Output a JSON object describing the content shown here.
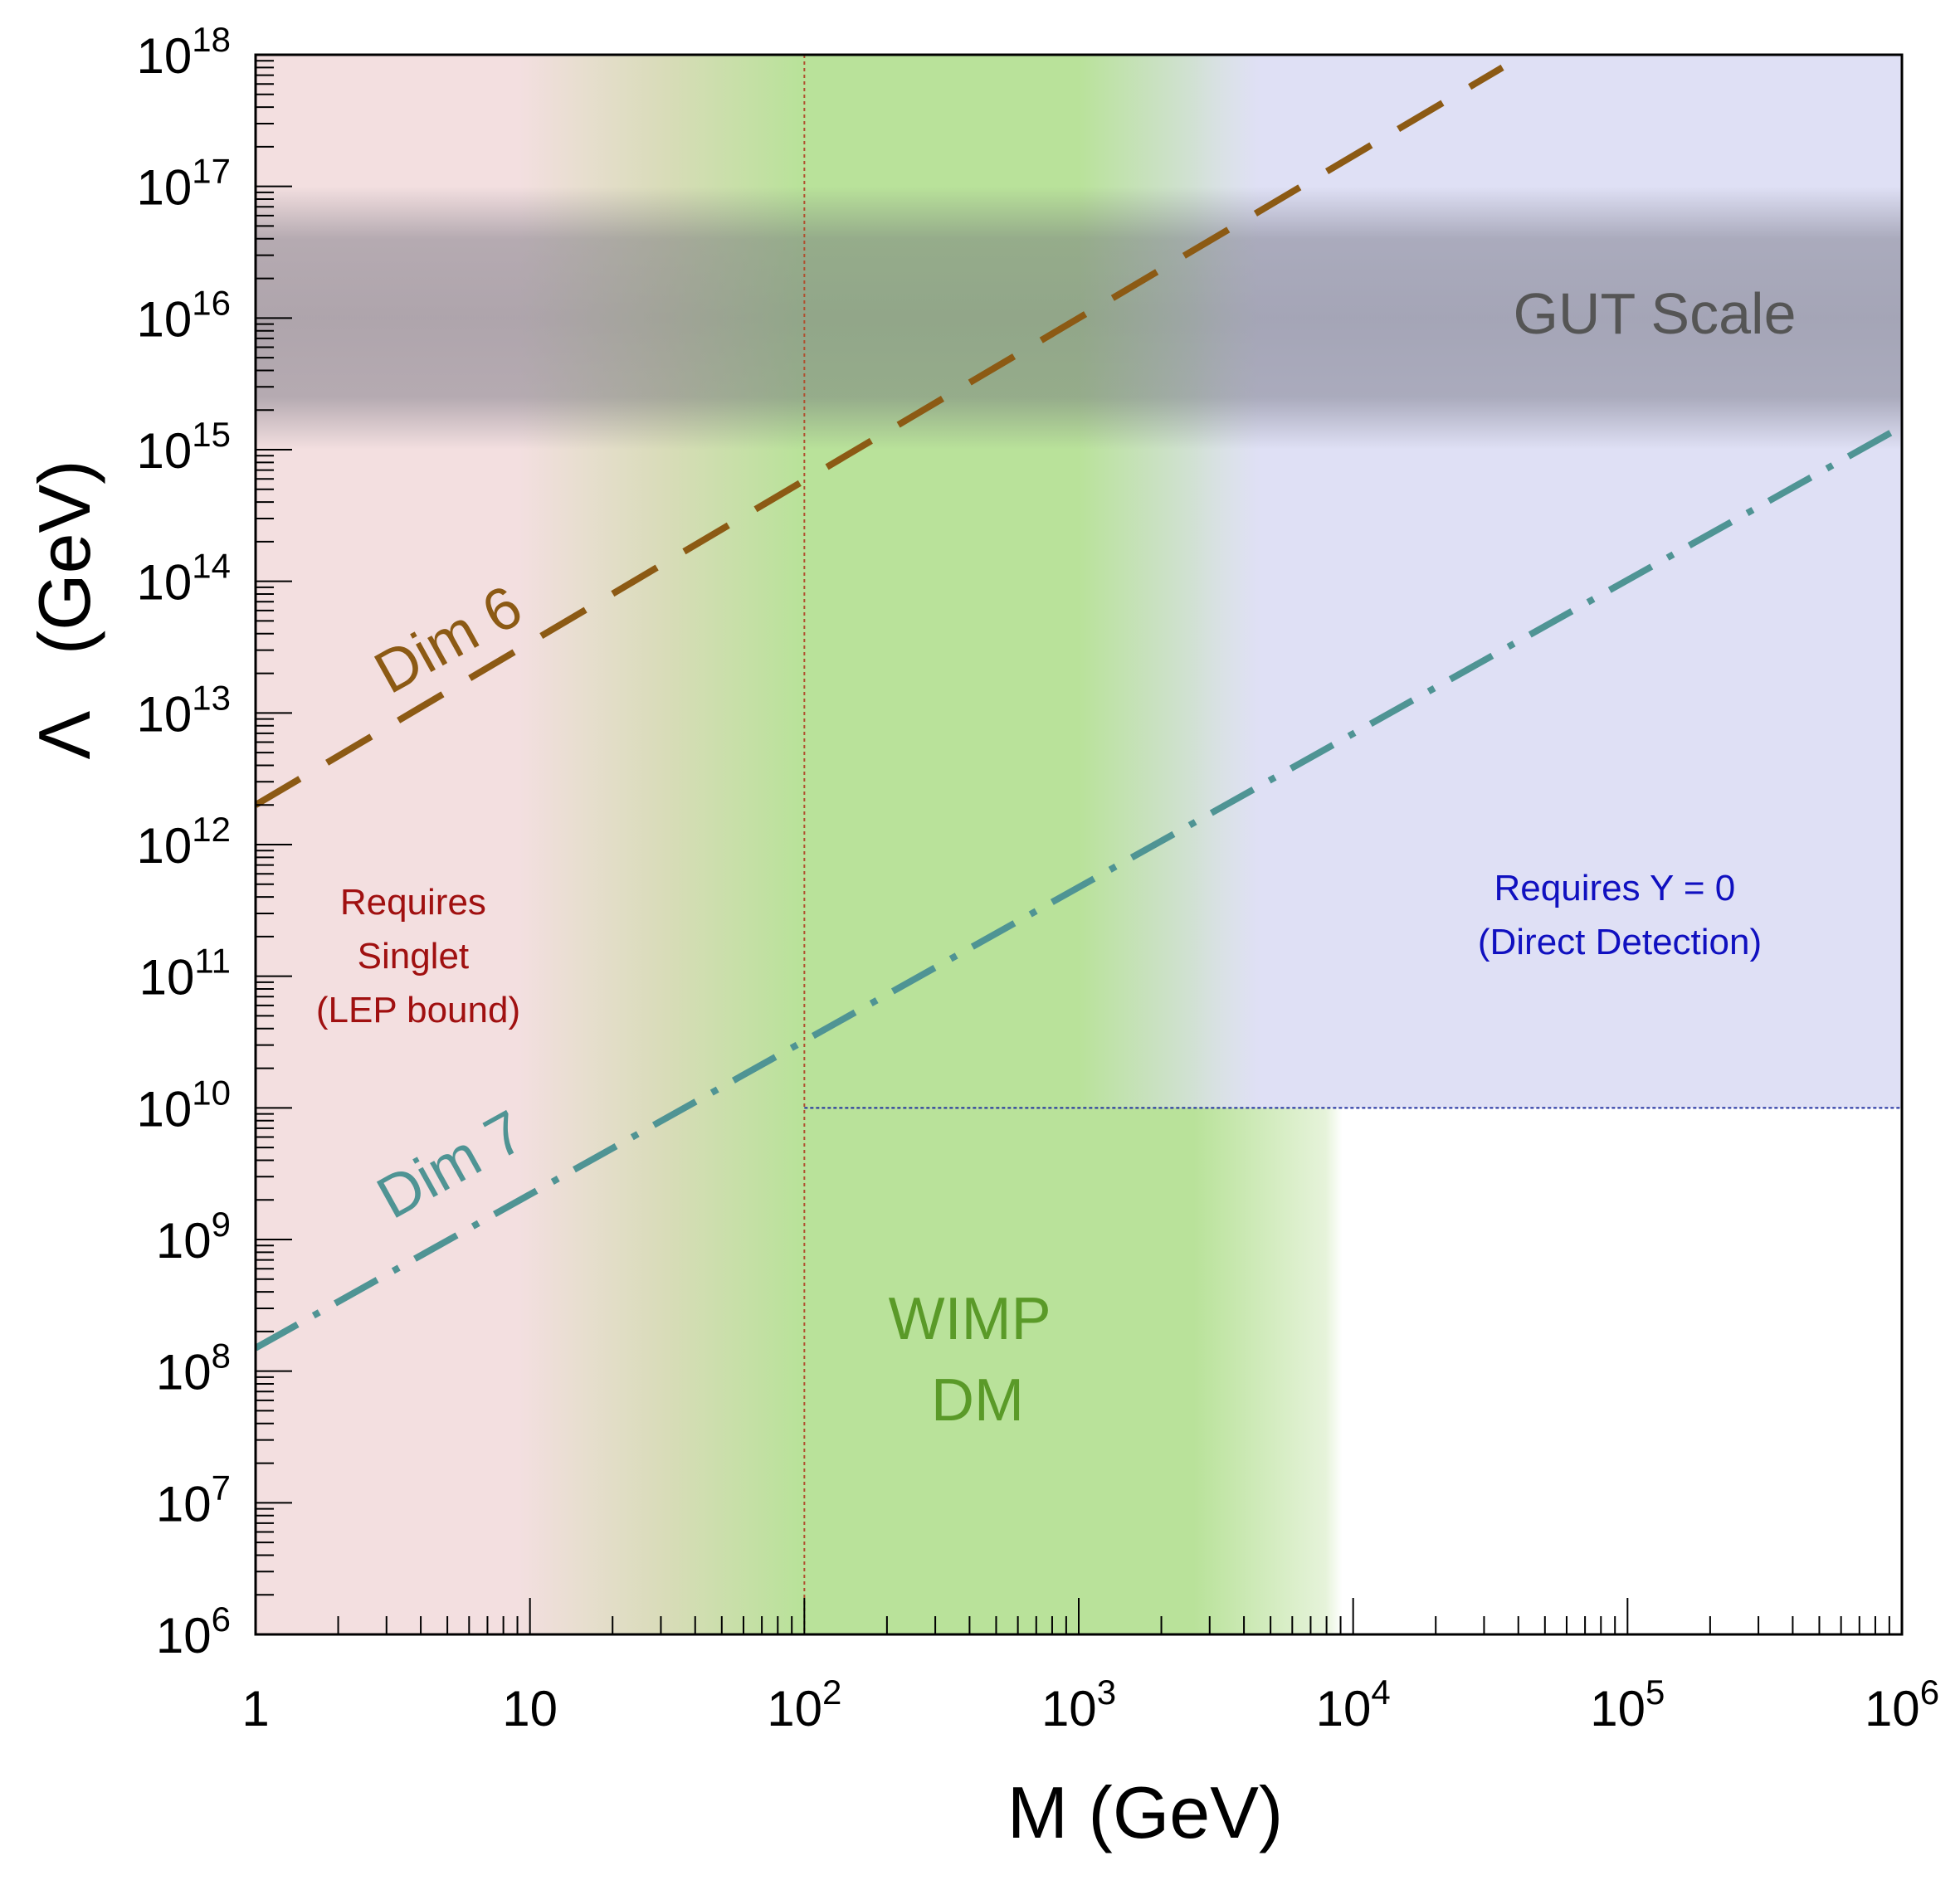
{
  "chart_data": {
    "type": "line",
    "xscale": "log",
    "yscale": "log",
    "xlabel": "M  (GeV)",
    "ylabel_symbol": "Λ",
    "ylabel_unit": "(GeV)",
    "xlim": [
      1,
      1000000
    ],
    "ylim": [
      1000000,
      1000000000000000000
    ],
    "x_ticks": [
      {
        "value": 1,
        "base": "1",
        "exp": ""
      },
      {
        "value": 10,
        "base": "10",
        "exp": ""
      },
      {
        "value": 100,
        "base": "10",
        "exp": "2"
      },
      {
        "value": 1000,
        "base": "10",
        "exp": "3"
      },
      {
        "value": 10000,
        "base": "10",
        "exp": "4"
      },
      {
        "value": 100000,
        "base": "10",
        "exp": "5"
      },
      {
        "value": 1000000,
        "base": "10",
        "exp": "6"
      }
    ],
    "y_ticks": [
      {
        "value": 1000000.0,
        "base": "10",
        "exp": "6"
      },
      {
        "value": 10000000.0,
        "base": "10",
        "exp": "7"
      },
      {
        "value": 100000000.0,
        "base": "10",
        "exp": "8"
      },
      {
        "value": 1000000000.0,
        "base": "10",
        "exp": "9"
      },
      {
        "value": 10000000000.0,
        "base": "10",
        "exp": "10"
      },
      {
        "value": 100000000000.0,
        "base": "10",
        "exp": "11"
      },
      {
        "value": 1000000000000.0,
        "base": "10",
        "exp": "12"
      },
      {
        "value": 10000000000000.0,
        "base": "10",
        "exp": "13"
      },
      {
        "value": 100000000000000.0,
        "base": "10",
        "exp": "14"
      },
      {
        "value": 1000000000000000.0,
        "base": "10",
        "exp": "15"
      },
      {
        "value": 1e+16,
        "base": "10",
        "exp": "16"
      },
      {
        "value": 1e+17,
        "base": "10",
        "exp": "17"
      },
      {
        "value": 1e+18,
        "base": "10",
        "exp": "18"
      }
    ],
    "series": [
      {
        "name": "Dim 6",
        "style": "dashed",
        "color": "#8c5a14",
        "x": [
          1,
          35000
        ],
        "y": [
          2000000000000.0,
          8e+17
        ]
      },
      {
        "name": "Dim 7",
        "style": "dash-dot",
        "color": "#4f9494",
        "x": [
          1,
          1000000
        ],
        "y": [
          150000000.0,
          1500000000000000.0
        ]
      }
    ],
    "regions": [
      {
        "name": "Requires Singlet (LEP bound)",
        "color": "#f3dfe0",
        "x_range": [
          1,
          100
        ]
      },
      {
        "name": "WIMP DM",
        "color": "#b9e29a",
        "x_range": [
          100,
          5000
        ]
      },
      {
        "name": "Requires Y = 0 (Direct Detection)",
        "color": "#dfe0f5",
        "x_range": [
          5000,
          1000000
        ],
        "y_range": [
          10000000000.0,
          1e+18
        ]
      },
      {
        "name": "GUT Scale",
        "color": "#7a7a8a",
        "y_range": [
          1000000000000000.0,
          1e+17
        ]
      }
    ],
    "reference_lines": [
      {
        "orientation": "vertical",
        "value": 100,
        "color": "#b05030"
      },
      {
        "orientation": "horizontal",
        "value": 10000000000.0,
        "x_from": 100,
        "color": "#2030a0"
      }
    ],
    "annotations": {
      "gut": "GUT Scale",
      "dim6": "Dim 6",
      "dim7": "Dim 7",
      "singlet": [
        "Requires",
        "Singlet",
        "(LEP bound)"
      ],
      "directdet": [
        "Requires Y = 0",
        "(Direct Detection)"
      ],
      "wimp": [
        "WIMP",
        "DM"
      ]
    },
    "colors": {
      "gut_text": "#555555",
      "dim6": "#8c5a14",
      "dim7": "#4f9494",
      "singlet_text": "#a01010",
      "directdet_text": "#1010c0",
      "wimp_text": "#5a9a28"
    }
  }
}
